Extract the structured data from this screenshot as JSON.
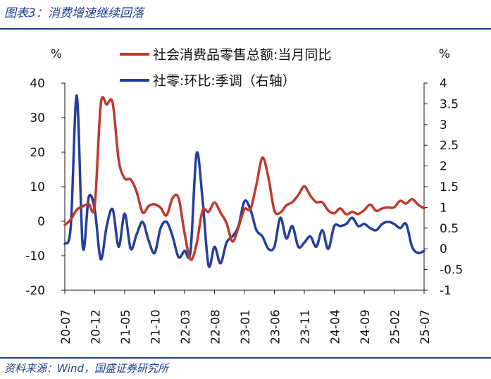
{
  "figure": {
    "title": "图表3：消费增速继续回落",
    "source": "资料来源：Wind，国盛证券研究所"
  },
  "colors": {
    "series1": "#c0392b",
    "series2": "#243f9c",
    "text": "#111111",
    "rule": "#1f3f8f"
  },
  "chart_data": {
    "type": "line",
    "title": "",
    "y_left": {
      "unit_label": "%",
      "ylim": [
        -20,
        40
      ],
      "ticks": [
        "40",
        "30",
        "20",
        "10",
        "0",
        "-10",
        "-20"
      ]
    },
    "y_right": {
      "unit_label": "%",
      "ylim": [
        -1,
        4
      ],
      "ticks": [
        "4",
        "3.5",
        "3",
        "2.5",
        "2",
        "1.5",
        "1",
        "0.5",
        "0",
        "-0.5",
        "-1"
      ]
    },
    "x_tick_labels": [
      "20-07",
      "20-12",
      "21-05",
      "21-10",
      "22-03",
      "22-08",
      "23-01",
      "23-06",
      "23-11",
      "24-04",
      "24-09",
      "25-02",
      "25-07"
    ],
    "legend_position": "top-center",
    "grid": false,
    "series": [
      {
        "name": "社会消费品零售总额:当月同比",
        "axis": "left",
        "color": "#c0392b",
        "x": [
          "2020-07",
          "2020-08",
          "2020-09",
          "2020-10",
          "2020-11",
          "2020-12",
          "2021-01",
          "2021-02",
          "2021-03",
          "2021-04",
          "2021-05",
          "2021-06",
          "2021-07",
          "2021-08",
          "2021-09",
          "2021-10",
          "2021-11",
          "2021-12",
          "2022-01",
          "2022-02",
          "2022-03",
          "2022-04",
          "2022-05",
          "2022-06",
          "2022-07",
          "2022-08",
          "2022-09",
          "2022-10",
          "2022-11",
          "2022-12",
          "2023-01",
          "2023-02",
          "2023-03",
          "2023-04",
          "2023-05",
          "2023-06",
          "2023-07",
          "2023-08",
          "2023-09",
          "2023-10",
          "2023-11",
          "2023-12",
          "2024-01",
          "2024-02",
          "2024-03",
          "2024-04",
          "2024-05",
          "2024-06",
          "2024-07",
          "2024-08",
          "2024-09",
          "2024-10",
          "2024-11",
          "2024-12",
          "2025-01",
          "2025-02",
          "2025-03",
          "2025-04",
          "2025-05",
          "2025-06",
          "2025-07"
        ],
        "values": [
          -1.1,
          0.5,
          3.3,
          4.3,
          5.0,
          4.6,
          33.8,
          33.8,
          34.2,
          17.7,
          12.4,
          12.1,
          8.5,
          2.5,
          4.4,
          4.9,
          3.9,
          1.7,
          6.7,
          6.7,
          -3.5,
          -11.1,
          -6.7,
          3.1,
          2.7,
          5.4,
          2.5,
          -0.5,
          -5.9,
          -1.8,
          3.5,
          3.5,
          10.6,
          18.4,
          12.7,
          3.1,
          2.5,
          4.6,
          5.5,
          7.6,
          10.1,
          7.4,
          5.5,
          5.5,
          3.1,
          2.3,
          3.7,
          2.0,
          2.7,
          2.1,
          3.2,
          4.8,
          3.0,
          3.7,
          4.0,
          4.0,
          5.9,
          5.1,
          6.4,
          4.8,
          3.7
        ]
      },
      {
        "name": "社零:环比:季调（右轴）",
        "axis": "right",
        "color": "#243f9c",
        "x": [
          "2020-07",
          "2020-08",
          "2020-09",
          "2020-10",
          "2020-11",
          "2020-12",
          "2021-01",
          "2021-02",
          "2021-03",
          "2021-04",
          "2021-05",
          "2021-06",
          "2021-07",
          "2021-08",
          "2021-09",
          "2021-10",
          "2021-11",
          "2021-12",
          "2022-01",
          "2022-02",
          "2022-03",
          "2022-04",
          "2022-05",
          "2022-06",
          "2022-07",
          "2022-08",
          "2022-09",
          "2022-10",
          "2022-11",
          "2022-12",
          "2023-01",
          "2023-02",
          "2023-03",
          "2023-04",
          "2023-05",
          "2023-06",
          "2023-07",
          "2023-08",
          "2023-09",
          "2023-10",
          "2023-11",
          "2023-12",
          "2024-01",
          "2024-02",
          "2024-03",
          "2024-04",
          "2024-05",
          "2024-06",
          "2024-07",
          "2024-08",
          "2024-09",
          "2024-10",
          "2024-11",
          "2024-12",
          "2025-01",
          "2025-02",
          "2025-03",
          "2025-04",
          "2025-05",
          "2025-06",
          "2025-07"
        ],
        "values": [
          0.12,
          0.55,
          3.7,
          0.05,
          1.25,
          0.95,
          -0.25,
          0.55,
          0.95,
          0.05,
          0.85,
          0.0,
          0.35,
          0.65,
          0.2,
          -0.1,
          0.5,
          0.65,
          0.3,
          -0.2,
          -0.05,
          -0.05,
          2.3,
          1.2,
          -0.4,
          0.05,
          -0.35,
          0.15,
          0.3,
          0.55,
          1.15,
          0.95,
          0.45,
          0.3,
          0.0,
          0.05,
          0.75,
          0.25,
          0.55,
          0.05,
          0.15,
          0.3,
          0.05,
          0.45,
          0.0,
          0.55,
          0.55,
          0.6,
          0.75,
          0.55,
          0.6,
          0.5,
          0.45,
          0.6,
          0.65,
          0.6,
          0.5,
          0.6,
          0.05,
          -0.1,
          -0.05
        ]
      }
    ]
  }
}
